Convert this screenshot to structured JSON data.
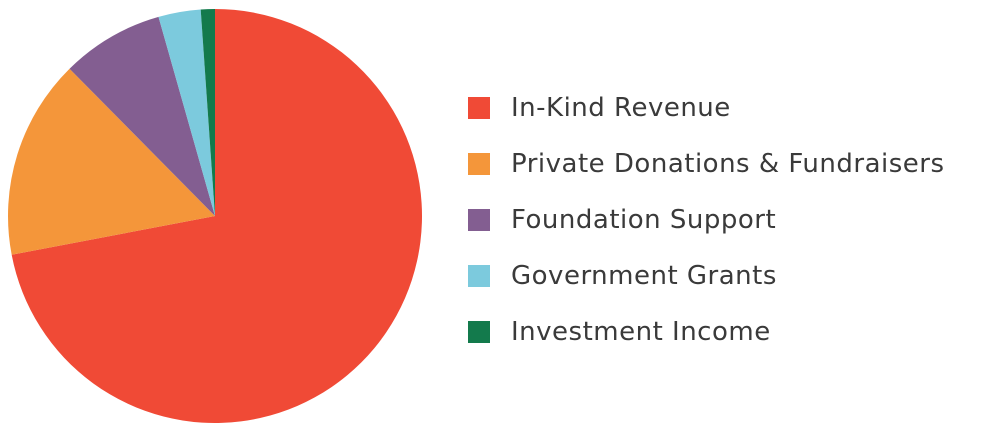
{
  "chart_data": {
    "type": "pie",
    "title": "",
    "categories": [
      "In-Kind Revenue",
      "Private Donations & Fundraisers",
      "Foundation Support",
      "Government Grants",
      "Investment Income"
    ],
    "values": [
      72,
      15.6,
      8,
      3.3,
      1.1
    ],
    "unit": "percent (estimated)",
    "colors": [
      "#f04a36",
      "#f4963a",
      "#835e91",
      "#7ccadd",
      "#137a4c"
    ],
    "start_angle": "12 o'clock",
    "direction": "clockwise",
    "legend": {
      "position": "right"
    }
  }
}
